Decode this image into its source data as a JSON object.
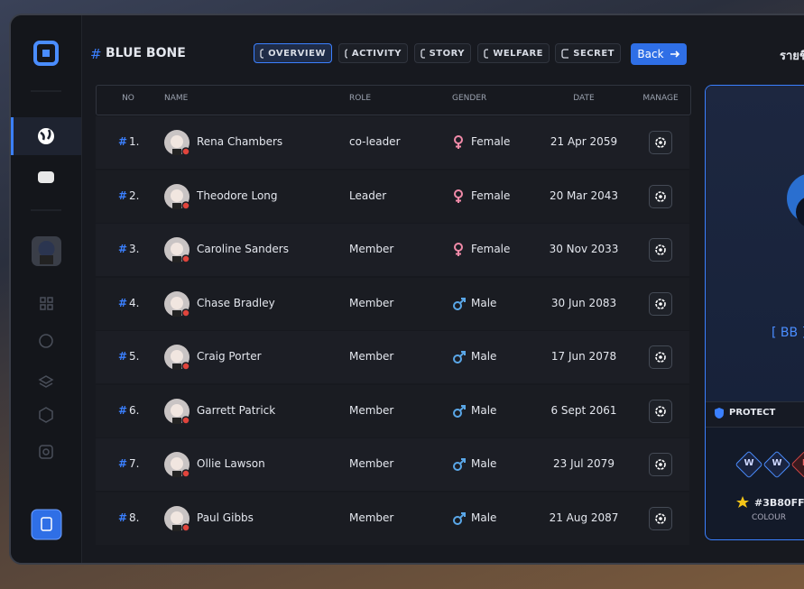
{
  "header": {
    "hash": "#",
    "title": "BLUE BONE",
    "tabs": [
      "OVERVIEW",
      "ACTIVITY",
      "STORY",
      "WELFARE",
      "SECRET"
    ],
    "back": "Back",
    "right_title": "รายชื่"
  },
  "table": {
    "hash": "#",
    "columns": [
      "NO",
      "NAME",
      "ROLE",
      "GENDER",
      "DATE",
      "MANAGE"
    ],
    "rows": [
      [
        "1.",
        "Rena Chambers",
        "co-leader",
        "Female",
        "21 Apr 2059"
      ],
      [
        "2.",
        "Theodore Long",
        "Leader",
        "Female",
        "20 Mar 2043"
      ],
      [
        "3.",
        "Caroline Sanders",
        "Member",
        "Female",
        "30 Nov 2033"
      ],
      [
        "4.",
        "Chase Bradley",
        "Member",
        "Male",
        "30 Jun 2083"
      ],
      [
        "5.",
        "Craig Porter",
        "Member",
        "Male",
        "17 Jun 2078"
      ],
      [
        "6.",
        "Garrett Patrick",
        "Member",
        "Male",
        "6 Sept 2061"
      ],
      [
        "7.",
        "Ollie Lawson",
        "Member",
        "Male",
        "23 Jul 2079"
      ],
      [
        "8.",
        "Paul Gibbs",
        "Member",
        "Male",
        "21 Aug 2087"
      ]
    ]
  },
  "panel": {
    "tag": "[ BB ]",
    "protect": "PROTECT",
    "badges": [
      "W",
      "W",
      "L"
    ],
    "colour_value": "#3B80FF",
    "colour_label": "COLOUR"
  }
}
